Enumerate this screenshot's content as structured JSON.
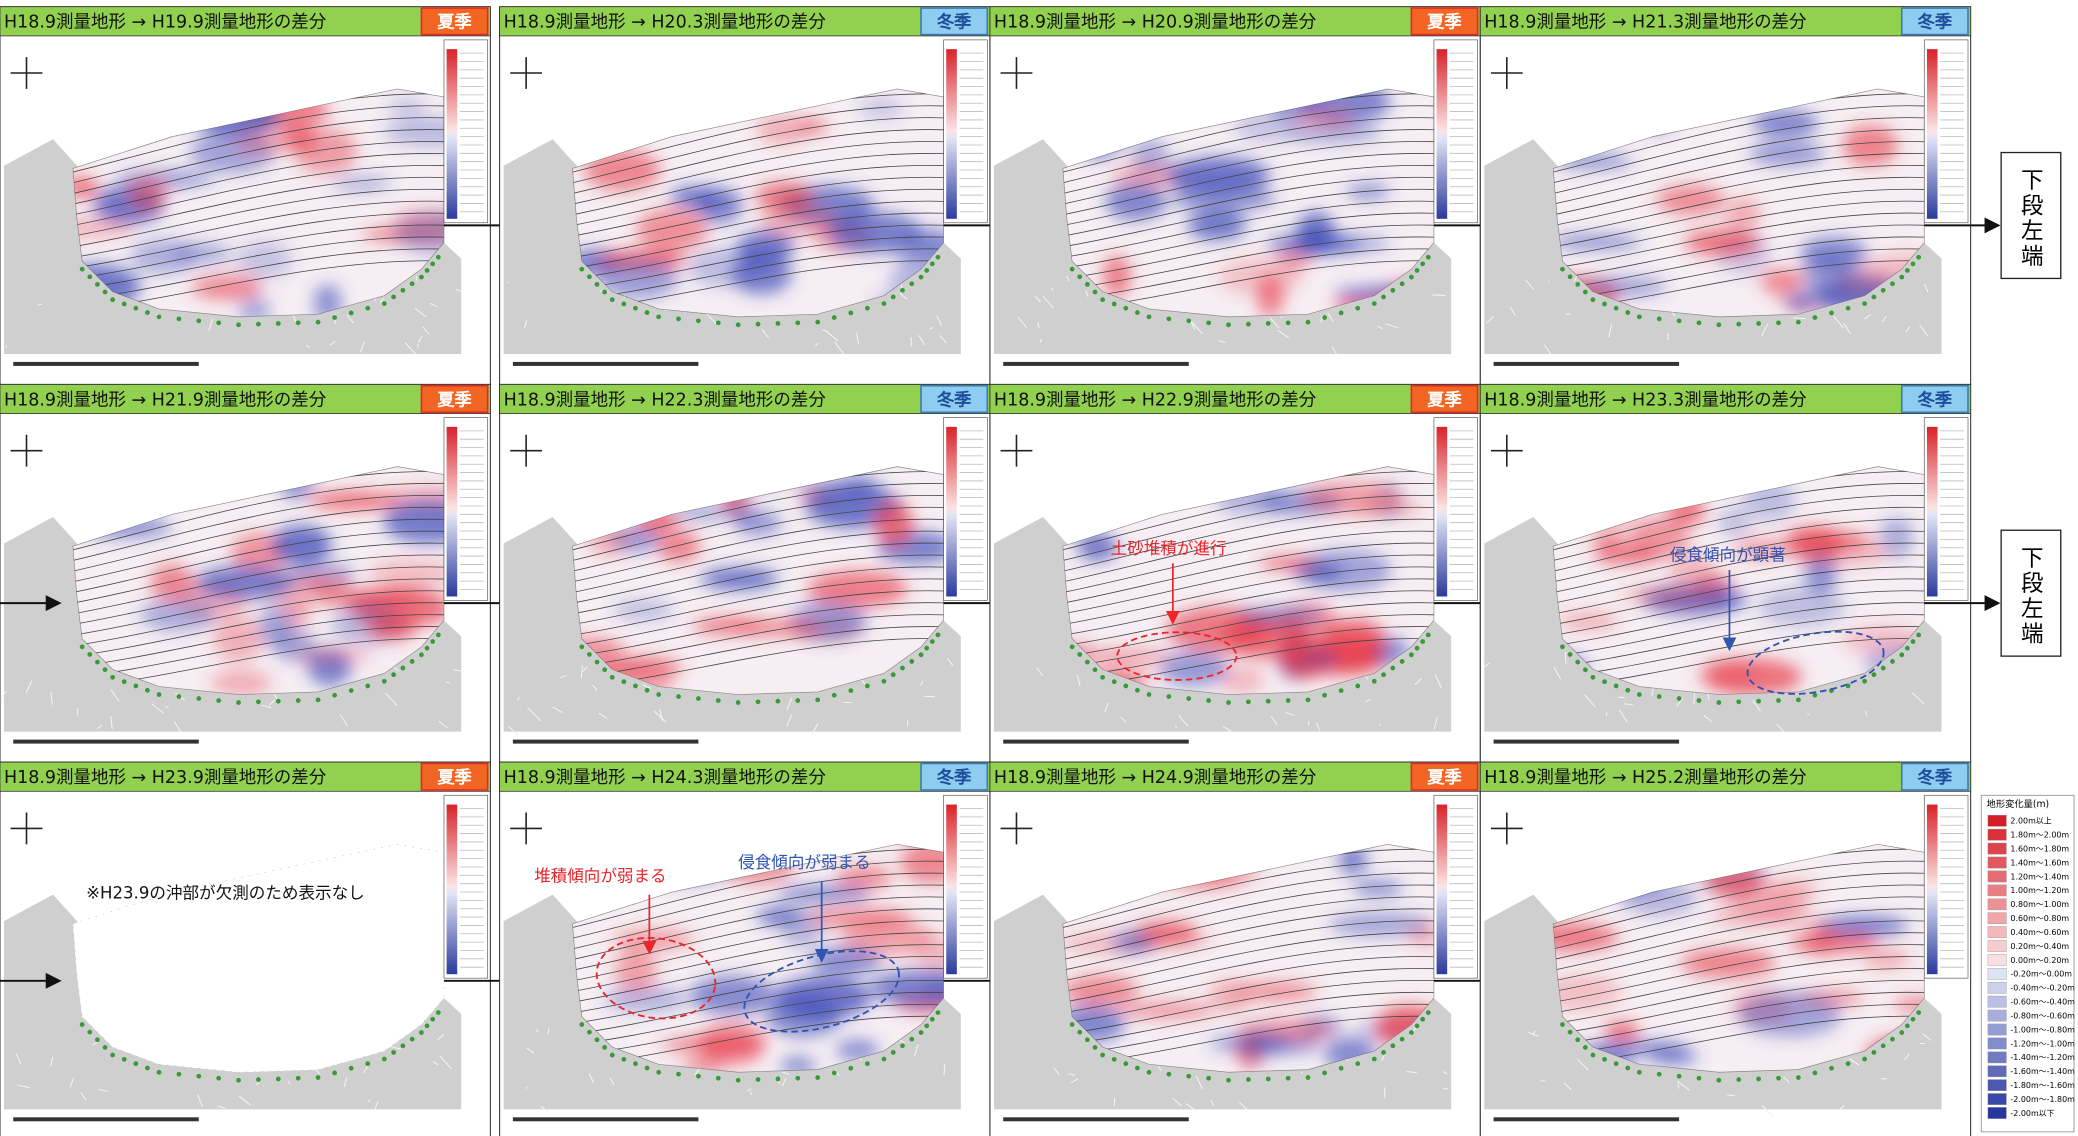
{
  "panels": [
    {
      "title": "H18.9測量地形 → H19.9測量地形の差分",
      "season": "夏季",
      "season_color": "#f26522",
      "annotations": []
    },
    {
      "title": "H18.9測量地形 → H20.3測量地形の差分",
      "season": "冬季",
      "season_color": "#8ecdf0",
      "annotations": []
    },
    {
      "title": "H18.9測量地形 → H20.9測量地形の差分",
      "season": "夏季",
      "season_color": "#f26522",
      "annotations": []
    },
    {
      "title": "H18.9測量地形 → H21.3測量地形の差分",
      "season": "冬季",
      "season_color": "#8ecdf0",
      "annotations": []
    },
    {
      "title": "H18.9測量地形 → H21.9測量地形の差分",
      "season": "夏季",
      "season_color": "#f26522",
      "annotations": []
    },
    {
      "title": "H18.9測量地形 → H22.3測量地形の差分",
      "season": "冬季",
      "season_color": "#8ecdf0",
      "annotations": []
    },
    {
      "title": "H18.9測量地形 → H22.9測量地形の差分",
      "season": "夏季",
      "season_color": "#f26522",
      "annotations": [
        {
          "text": "土砂堆積が進行",
          "color": "#e8262b"
        }
      ]
    },
    {
      "title": "H18.9測量地形 → H23.3測量地形の差分",
      "season": "冬季",
      "season_color": "#8ecdf0",
      "annotations": [
        {
          "text": "侵食傾向が顕著",
          "color": "#2f55b0"
        }
      ]
    },
    {
      "title": "H18.9測量地形 → H23.9測量地形の差分",
      "season": "夏季",
      "season_color": "#f26522",
      "annotations": [
        {
          "text": "※H23.9の沖部が欠測のため表示なし",
          "color": "#111111"
        }
      ]
    },
    {
      "title": "H18.9測量地形 → H24.3測量地形の差分",
      "season": "冬季",
      "season_color": "#8ecdf0",
      "annotations": [
        {
          "text": "堆積傾向が弱まる",
          "color": "#e8262b"
        },
        {
          "text": "侵食傾向が弱まる",
          "color": "#2f55b0"
        }
      ]
    },
    {
      "title": "H18.9測量地形 → H24.9測量地形の差分",
      "season": "夏季",
      "season_color": "#f26522",
      "annotations": []
    },
    {
      "title": "H18.9測量地形 → H25.2測量地形の差分",
      "season": "冬季",
      "season_color": "#8ecdf0",
      "annotations": []
    }
  ],
  "side_labels": [
    "下段左端",
    "下段左端"
  ],
  "legend": {
    "title": "地形変化量(m)",
    "labels": [
      "2.00m以上",
      "1.80m～2.00m",
      "1.60m～1.80m",
      "1.40m～1.60m",
      "1.20m～1.40m",
      "1.00m～1.20m",
      "0.80m～1.00m",
      "0.60m～0.80m",
      "0.40m～0.60m",
      "0.20m～0.40m",
      "0.00m～0.20m",
      "-0.20m～0.00m",
      "-0.40m～-0.20m",
      "-0.60m～-0.40m",
      "-0.80m～-0.60m",
      "-1.00m～-0.80m",
      "-1.20m～-1.00m",
      "-1.40m～-1.20m",
      "-1.60m～-1.40m",
      "-1.80m～-1.60m",
      "-2.00m～-1.80m",
      "-2.00m以下"
    ]
  }
}
